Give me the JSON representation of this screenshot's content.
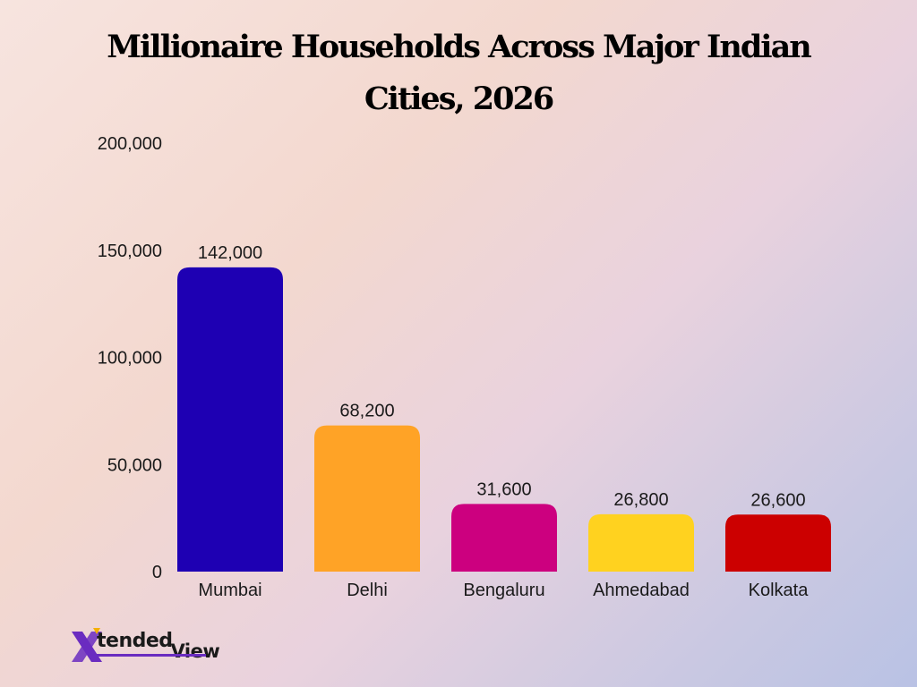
{
  "chart_data": {
    "type": "bar",
    "title": "Millionaire Households Across Major Indian Cities, 2026",
    "categories": [
      "Mumbai",
      "Delhi",
      "Bengaluru",
      "Ahmedabad",
      "Kolkata"
    ],
    "values": [
      142000,
      68200,
      31600,
      26800,
      26600
    ],
    "value_labels": [
      "142,000",
      "68,200",
      "31,600",
      "26,800",
      "26,600"
    ],
    "colors": [
      "#1e00b3",
      "#ffa326",
      "#cc007f",
      "#ffd21f",
      "#cc0000"
    ],
    "ylim": [
      0,
      200000
    ],
    "yticks": [
      0,
      50000,
      100000,
      150000,
      200000
    ],
    "ytick_labels": [
      "0",
      "50,000",
      "100,000",
      "150,000",
      "200,000"
    ],
    "xlabel": "",
    "ylabel": "",
    "grid": false,
    "legend": "none"
  },
  "brand": {
    "x_mark": "X",
    "name_part1": "tended",
    "name_part2": "View",
    "x_color": "#6a2cc0",
    "x_accent_color": "#f4b000"
  }
}
